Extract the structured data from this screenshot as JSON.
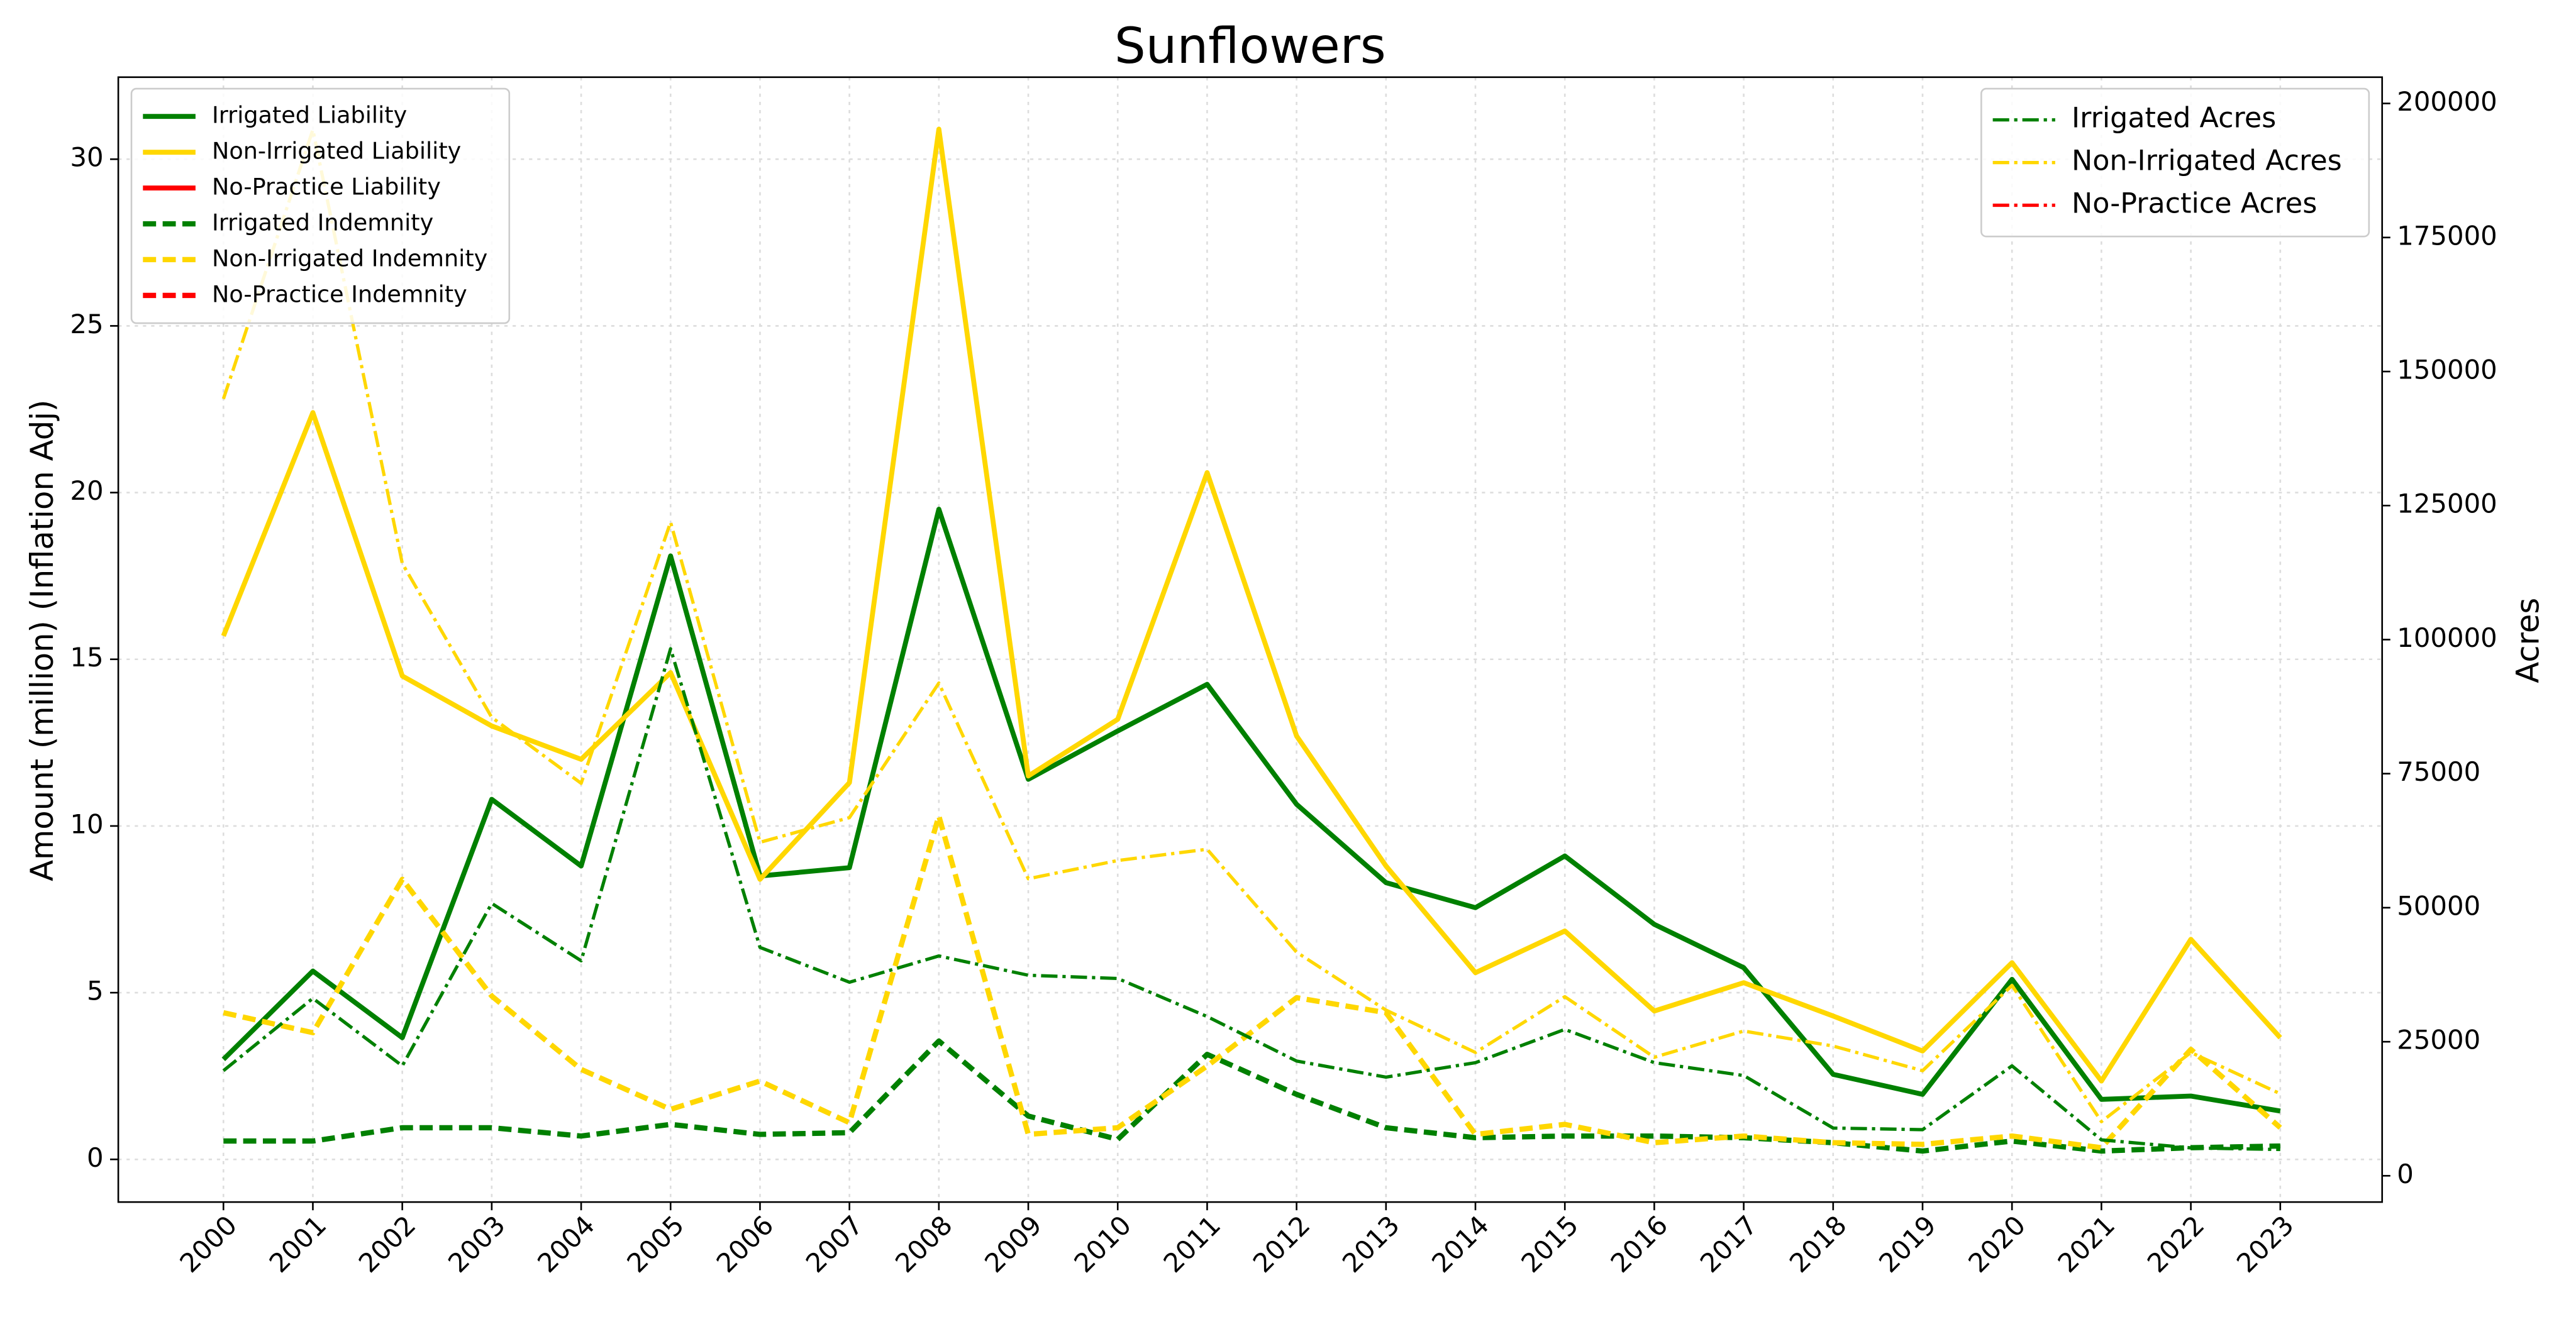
{
  "chart_data": {
    "type": "line",
    "title": "Sunflowers",
    "ylabel": "Amount (million) (Inflation Adj)",
    "y2label": "Acres",
    "categories": [
      "2000",
      "2001",
      "2002",
      "2003",
      "2004",
      "2005",
      "2006",
      "2007",
      "2008",
      "2009",
      "2010",
      "2011",
      "2012",
      "2013",
      "2014",
      "2015",
      "2016",
      "2017",
      "2018",
      "2019",
      "2020",
      "2021",
      "2022",
      "2023"
    ],
    "ylim": [
      -1.28,
      32.46
    ],
    "yticks": [
      0,
      5,
      10,
      15,
      20,
      25,
      30
    ],
    "y2lim": [
      -4900,
      204900
    ],
    "y2ticks": [
      0,
      25000,
      50000,
      75000,
      100000,
      125000,
      150000,
      175000,
      200000
    ],
    "grid": true,
    "legend": "upper left",
    "legend2": "upper right",
    "series": [
      {
        "name": "Irrigated Liability",
        "color": "#008000",
        "style": "solid",
        "values": [
          3.0,
          5.65,
          3.65,
          10.8,
          8.8,
          18.1,
          8.5,
          8.75,
          19.5,
          11.4,
          12.85,
          14.25,
          10.65,
          8.3,
          7.55,
          9.1,
          7.05,
          5.75,
          2.55,
          1.95,
          5.4,
          1.8,
          1.9,
          1.45
        ]
      },
      {
        "name": "Non-Irrigated Liability",
        "color": "#ffd700",
        "style": "solid",
        "values": [
          15.7,
          22.4,
          14.5,
          13.0,
          12.0,
          14.6,
          8.4,
          11.3,
          30.9,
          11.5,
          13.2,
          20.6,
          12.7,
          8.8,
          5.6,
          6.85,
          4.45,
          5.3,
          4.3,
          3.25,
          5.9,
          2.35,
          6.6,
          3.65
        ]
      },
      {
        "name": "No-Practice Liability",
        "color": "#ff0000",
        "style": "solid",
        "values": [
          null,
          null,
          null,
          null,
          null,
          null,
          null,
          null,
          null,
          null,
          null,
          null,
          null,
          null,
          null,
          null,
          null,
          null,
          null,
          null,
          null,
          null,
          null,
          null
        ]
      },
      {
        "name": "Irrigated Indemnity",
        "color": "#008000",
        "style": "dashed",
        "values": [
          0.55,
          0.55,
          0.95,
          0.95,
          0.7,
          1.05,
          0.75,
          0.8,
          3.55,
          1.3,
          0.6,
          3.15,
          1.95,
          0.95,
          0.65,
          0.7,
          0.7,
          0.65,
          0.5,
          0.25,
          0.55,
          0.25,
          0.35,
          0.4
        ]
      },
      {
        "name": "Non-Irrigated Indemnity",
        "color": "#ffd700",
        "style": "dashed",
        "values": [
          4.4,
          3.8,
          8.4,
          4.9,
          2.7,
          1.5,
          2.35,
          1.1,
          10.3,
          0.75,
          0.95,
          2.8,
          4.85,
          4.4,
          0.75,
          1.05,
          0.5,
          0.7,
          0.5,
          0.45,
          0.7,
          0.35,
          3.3,
          0.95
        ]
      },
      {
        "name": "No-Practice Indemnity",
        "color": "#ff0000",
        "style": "dashed",
        "values": [
          null,
          null,
          null,
          null,
          null,
          null,
          null,
          null,
          null,
          null,
          null,
          null,
          null,
          null,
          null,
          null,
          null,
          null,
          null,
          null,
          null,
          null,
          null,
          null
        ]
      },
      {
        "name": "Irrigated Acres",
        "color": "#008000",
        "style": "dashdot",
        "axis": "y2",
        "values": [
          19600,
          33100,
          20500,
          50800,
          40100,
          98300,
          42600,
          36100,
          41000,
          37400,
          36800,
          29700,
          21400,
          18400,
          21100,
          27300,
          21100,
          18700,
          8900,
          8600,
          20500,
          6700,
          5200,
          4900
        ]
      },
      {
        "name": "Non-Irrigated Acres",
        "color": "#ffd700",
        "style": "dashdot",
        "axis": "y2",
        "values": [
          144900,
          195100,
          114200,
          85500,
          73200,
          121900,
          62200,
          66800,
          91900,
          55400,
          58800,
          60900,
          41700,
          30900,
          23000,
          33400,
          22100,
          27000,
          24200,
          19600,
          35500,
          10100,
          23000,
          15300
        ]
      },
      {
        "name": "No-Practice Acres",
        "color": "#ff0000",
        "style": "dashdot",
        "axis": "y2",
        "values": [
          null,
          null,
          null,
          null,
          null,
          null,
          null,
          null,
          null,
          null,
          null,
          null,
          null,
          null,
          null,
          null,
          null,
          null,
          null,
          null,
          null,
          null,
          null,
          null
        ]
      }
    ]
  }
}
